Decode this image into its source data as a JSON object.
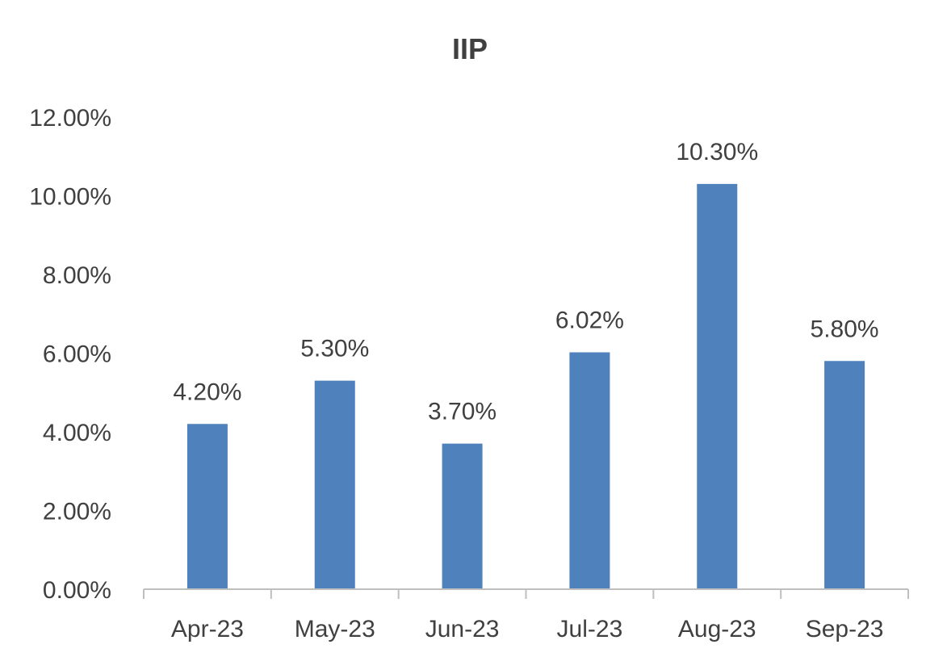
{
  "chart_data": {
    "type": "bar",
    "title": "IIP",
    "xlabel": "",
    "ylabel": "",
    "categories": [
      "Apr-23",
      "May-23",
      "Jun-23",
      "Jul-23",
      "Aug-23",
      "Sep-23"
    ],
    "series": [
      {
        "values": [
          4.2,
          5.3,
          3.7,
          6.02,
          10.3,
          5.8
        ],
        "data_labels": [
          "4.20%",
          "5.30%",
          "3.70%",
          "6.02%",
          "10.30%",
          "5.80%"
        ],
        "color": "#4F81BD"
      }
    ],
    "ylim": [
      0,
      12
    ],
    "y_ticks": [
      0,
      2,
      4,
      6,
      8,
      10,
      12
    ],
    "y_tick_labels": [
      "0.00%",
      "2.00%",
      "4.00%",
      "6.00%",
      "8.00%",
      "10.00%",
      "12.00%"
    ],
    "grid": false,
    "legend": "none",
    "colors": {
      "bar": "#4F81BD",
      "axis": "#BFBFBF",
      "text": "#404040"
    }
  }
}
